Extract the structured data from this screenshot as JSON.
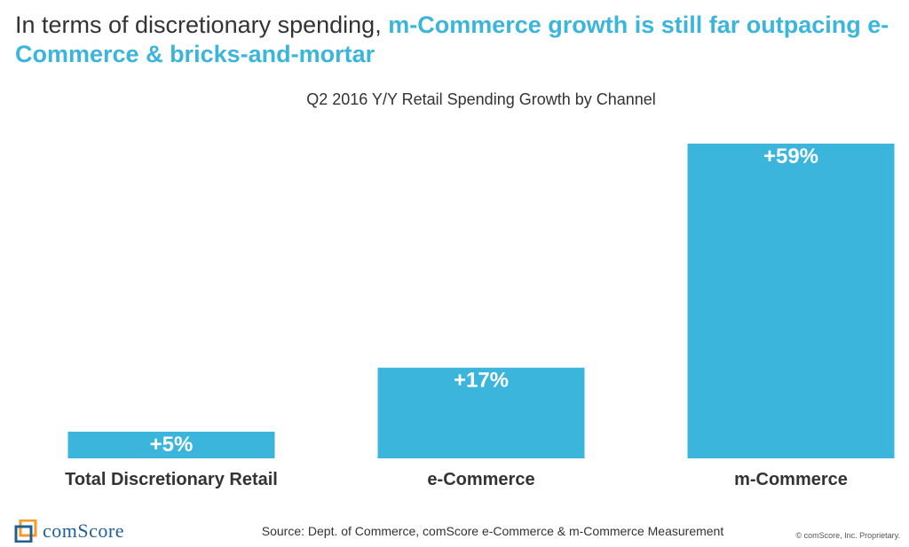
{
  "headline": {
    "plain": "In terms of discretionary spending, ",
    "highlight": "m-Commerce growth is still far outpacing e-Commerce & bricks-and-mortar"
  },
  "chart_data": {
    "type": "bar",
    "title": "Q2 2016 Y/Y Retail Spending Growth by Channel",
    "categories": [
      "Total Discretionary Retail",
      "e-Commerce",
      "m-Commerce"
    ],
    "values": [
      5,
      17,
      59
    ],
    "value_labels": [
      "+5%",
      "+17%",
      "+59%"
    ],
    "xlabel": "",
    "ylabel": "",
    "ylim": [
      0,
      60
    ],
    "grid": false,
    "legend": "none",
    "bar_color": "#3bb5dc",
    "label_color": "#ffffff"
  },
  "footer": {
    "brand": "comScore",
    "source": "Source: Dept. of Commerce, comScore e-Commerce & m-Commerce Measurement",
    "copyright": "© comScore, Inc. Proprietary."
  },
  "colors": {
    "accent": "#3bb5dc",
    "text": "#333333",
    "brand_blue": "#1f5f98",
    "brand_orange": "#f39a2b"
  }
}
